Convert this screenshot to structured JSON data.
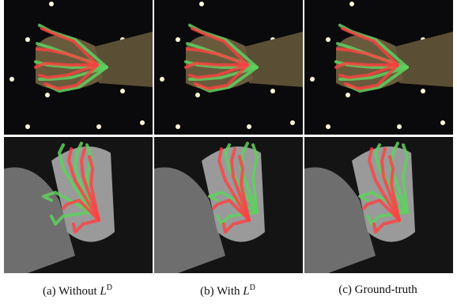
{
  "figure": {
    "captions": [
      {
        "label": "(a) Without",
        "symbol": "L",
        "superscript": "D"
      },
      {
        "label": "(b) With",
        "symbol": "L",
        "superscript": "D"
      },
      {
        "label": "(c) Ground-truth"
      }
    ]
  }
}
